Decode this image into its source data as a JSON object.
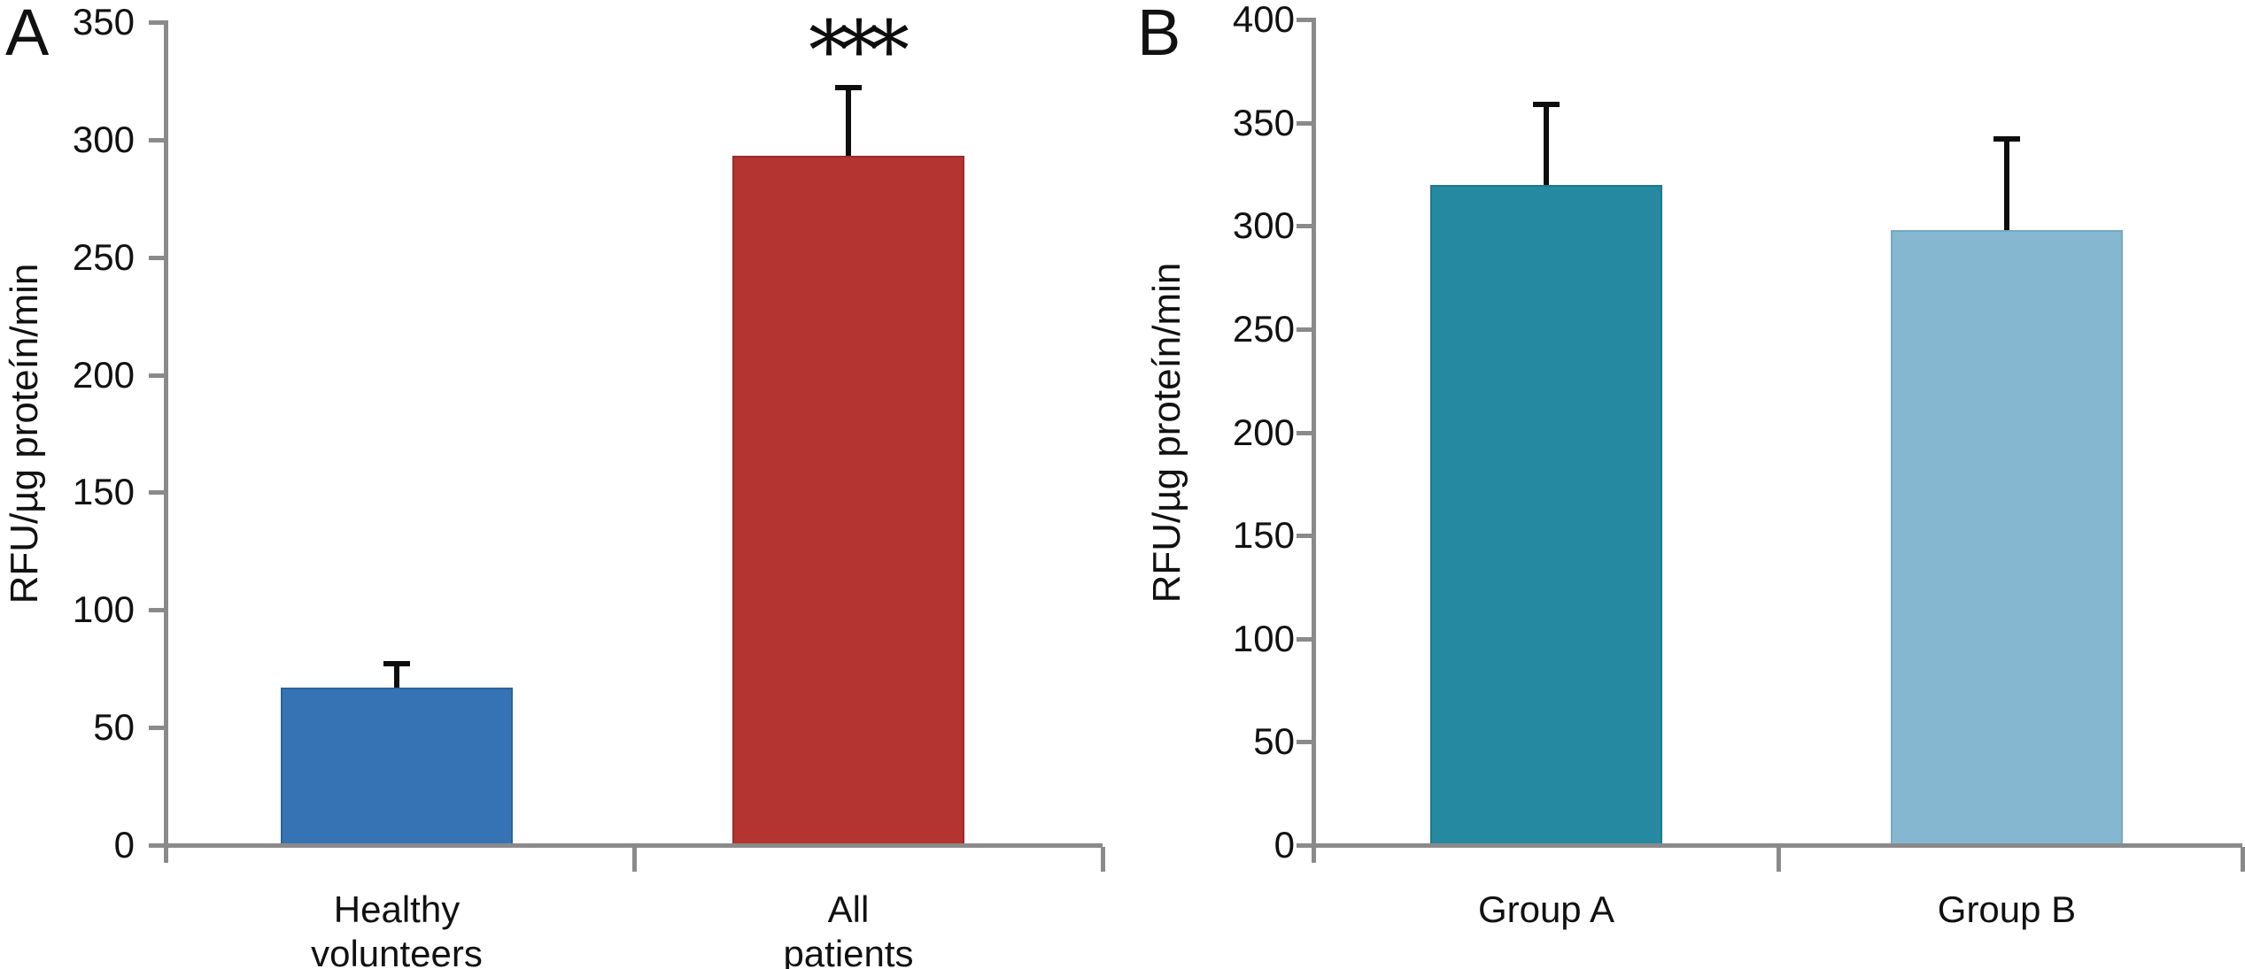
{
  "chart_data": [
    {
      "type": "bar",
      "panel_label": "A",
      "title": "",
      "xlabel": "",
      "ylabel": "RFU/µg proteín/min",
      "ylim": [
        0,
        350
      ],
      "ytick_step": 50,
      "ytick_labels": [
        "0",
        "50",
        "100",
        "150",
        "200",
        "250",
        "300",
        "350"
      ],
      "categories": [
        "Healthy\nvolunteers",
        "All\npatients"
      ],
      "values": [
        67,
        293
      ],
      "errors_plus": [
        10,
        29
      ],
      "bar_colors": [
        "#3573b4",
        "#b43431"
      ],
      "bar_edge_colors": [
        "#2b639f",
        "#9c2b29"
      ],
      "significance_markers": [
        {
          "category_index": 1,
          "text": "***"
        }
      ],
      "axis_color": "#8a8a8a",
      "text_color": "#111111",
      "grid": false,
      "legend": null
    },
    {
      "type": "bar",
      "panel_label": "B",
      "title": "",
      "xlabel": "",
      "ylabel": "RFU/µg proteín/min",
      "ylim": [
        0,
        400
      ],
      "ytick_step": 50,
      "ytick_labels": [
        "0",
        "50",
        "100",
        "150",
        "200",
        "250",
        "300",
        "350",
        "400"
      ],
      "categories": [
        "Group A",
        "Group B"
      ],
      "values": [
        320,
        298
      ],
      "errors_plus": [
        39,
        44
      ],
      "bar_colors": [
        "#2589a1",
        "#85b8d0"
      ],
      "bar_edge_colors": [
        "#1e798f",
        "#74a9c3"
      ],
      "significance_markers": [],
      "axis_color": "#8a8a8a",
      "text_color": "#111111",
      "grid": false,
      "legend": null
    }
  ]
}
